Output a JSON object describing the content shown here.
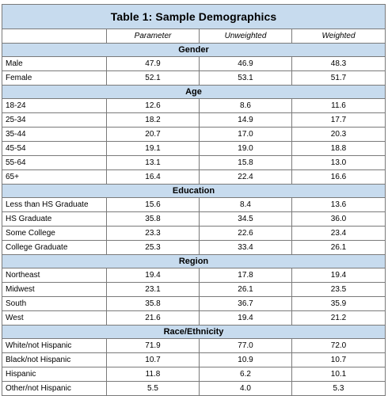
{
  "title": "Table 1: Sample Demographics",
  "columns": [
    "",
    "Parameter",
    "Unweighted",
    "Weighted"
  ],
  "sections": [
    {
      "name": "Gender",
      "rows": [
        {
          "label": "Male",
          "parameter": "47.9",
          "unweighted": "46.9",
          "weighted": "48.3"
        },
        {
          "label": "Female",
          "parameter": "52.1",
          "unweighted": "53.1",
          "weighted": "51.7"
        }
      ]
    },
    {
      "name": "Age",
      "rows": [
        {
          "label": "18-24",
          "parameter": "12.6",
          "unweighted": "8.6",
          "weighted": "11.6"
        },
        {
          "label": "25-34",
          "parameter": "18.2",
          "unweighted": "14.9",
          "weighted": "17.7"
        },
        {
          "label": "35-44",
          "parameter": "20.7",
          "unweighted": "17.0",
          "weighted": "20.3"
        },
        {
          "label": "45-54",
          "parameter": "19.1",
          "unweighted": "19.0",
          "weighted": "18.8"
        },
        {
          "label": "55-64",
          "parameter": "13.1",
          "unweighted": "15.8",
          "weighted": "13.0"
        },
        {
          "label": "65+",
          "parameter": "16.4",
          "unweighted": "22.4",
          "weighted": "16.6"
        }
      ]
    },
    {
      "name": "Education",
      "rows": [
        {
          "label": "Less than HS Graduate",
          "parameter": "15.6",
          "unweighted": "8.4",
          "weighted": "13.6"
        },
        {
          "label": "HS Graduate",
          "parameter": "35.8",
          "unweighted": "34.5",
          "weighted": "36.0"
        },
        {
          "label": "Some College",
          "parameter": "23.3",
          "unweighted": "22.6",
          "weighted": "23.4"
        },
        {
          "label": "College Graduate",
          "parameter": "25.3",
          "unweighted": "33.4",
          "weighted": "26.1"
        }
      ]
    },
    {
      "name": "Region",
      "rows": [
        {
          "label": "Northeast",
          "parameter": "19.4",
          "unweighted": "17.8",
          "weighted": "19.4"
        },
        {
          "label": "Midwest",
          "parameter": "23.1",
          "unweighted": "26.1",
          "weighted": "23.5"
        },
        {
          "label": "South",
          "parameter": "35.8",
          "unweighted": "36.7",
          "weighted": "35.9"
        },
        {
          "label": "West",
          "parameter": "21.6",
          "unweighted": "19.4",
          "weighted": "21.2"
        }
      ]
    },
    {
      "name": "Race/Ethnicity",
      "rows": [
        {
          "label": "White/not Hispanic",
          "parameter": "71.9",
          "unweighted": "77.0",
          "weighted": "72.0"
        },
        {
          "label": "Black/not Hispanic",
          "parameter": "10.7",
          "unweighted": "10.9",
          "weighted": "10.7"
        },
        {
          "label": "Hispanic",
          "parameter": "11.8",
          "unweighted": "6.2",
          "weighted": "10.1"
        },
        {
          "label": "Other/not Hispanic",
          "parameter": "5.5",
          "unweighted": "4.0",
          "weighted": "5.3"
        }
      ]
    }
  ]
}
